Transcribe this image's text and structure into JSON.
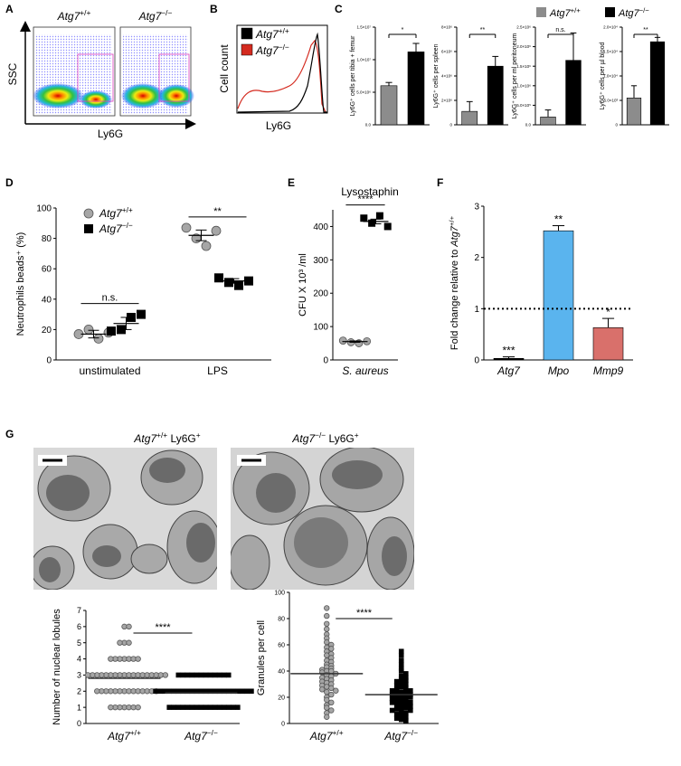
{
  "panels": {
    "A": {
      "letter": "A",
      "titles": [
        [
          {
            "text": "Atg7",
            "italic": true
          },
          {
            "text": "+/+",
            "sup": true
          }
        ],
        [
          {
            "text": "Atg7",
            "italic": true
          },
          {
            "text": "−/−",
            "sup": true
          }
        ]
      ],
      "y_label": "SSC",
      "x_label": "Ly6G"
    },
    "B": {
      "letter": "B",
      "y_label": "Cell count",
      "x_label": "Ly6G",
      "legend": [
        [
          {
            "text": "Atg7",
            "italic": true
          },
          {
            "text": "+/+",
            "sup": true
          }
        ],
        [
          {
            "text": "Atg7",
            "italic": true
          },
          {
            "text": "−/−",
            "sup": true
          }
        ]
      ],
      "colors": [
        "#000000",
        "#d42a1f"
      ]
    },
    "C": {
      "letter": "C",
      "legend": [
        [
          {
            "text": "Atg7",
            "italic": true
          },
          {
            "text": "+/+",
            "sup": true
          }
        ],
        [
          {
            "text": "Atg7",
            "italic": true
          },
          {
            "text": "−/−",
            "sup": true
          }
        ]
      ],
      "colors": [
        "#8c8c8c",
        "#000000"
      ]
    },
    "D": {
      "letter": "D"
    },
    "E": {
      "letter": "E"
    },
    "F": {
      "letter": "F"
    },
    "G": {
      "letter": "G",
      "titles": [
        [
          {
            "text": "Atg7",
            "italic": true
          },
          {
            "text": "+/+",
            "sup": true
          },
          {
            "text": " Ly6G"
          },
          {
            "text": "+",
            "sup": true
          }
        ],
        [
          {
            "text": "Atg7",
            "italic": true
          },
          {
            "text": "−/−",
            "sup": true
          },
          {
            "text": " Ly6G"
          },
          {
            "text": "+",
            "sup": true
          }
        ]
      ]
    }
  },
  "chart_data": [
    {
      "type": "bar",
      "y_label": "Ly6G⁺ cells per tibia + femur",
      "values": [
        6000000,
        11200000
      ],
      "errors": [
        500000,
        1300000
      ],
      "colors": [
        "#8c8c8c",
        "#000000"
      ],
      "ylim": [
        0,
        15000000
      ],
      "yticks": [
        {
          "value": 0,
          "label": "0.0"
        },
        {
          "value": 5000000,
          "label": "5.0×10⁶"
        },
        {
          "value": 10000000,
          "label": "1.0×10⁷"
        },
        {
          "value": 15000000,
          "label": "1.5×10⁷"
        }
      ],
      "annotations": [
        {
          "text": "*"
        }
      ]
    },
    {
      "type": "bar",
      "y_label": "Ly6G⁺ cells per spleen",
      "values": [
        1100000,
        4800000
      ],
      "errors": [
        800000,
        800000
      ],
      "colors": [
        "#8c8c8c",
        "#000000"
      ],
      "ylim": [
        0,
        8000000
      ],
      "yticks": [
        0,
        {
          "value": 2000000,
          "label": "2×10⁶"
        },
        {
          "value": 4000000,
          "label": "4×10⁶"
        },
        {
          "value": 6000000,
          "label": "6×10⁶"
        },
        {
          "value": 8000000,
          "label": "8×10⁶"
        }
      ],
      "annotations": [
        {
          "text": "**"
        }
      ]
    },
    {
      "type": "bar",
      "y_label": "Ly6G⁺ cells per ml peritoneum",
      "values": [
        200000,
        1650000
      ],
      "errors": [
        180000,
        700000
      ],
      "colors": [
        "#8c8c8c",
        "#000000"
      ],
      "ylim": [
        0,
        2500000
      ],
      "yticks": [
        {
          "value": 0,
          "label": "0.0"
        },
        {
          "value": 500000,
          "label": "5.0×10⁵"
        },
        {
          "value": 1000000,
          "label": "1.0×10⁶"
        },
        {
          "value": 1500000,
          "label": "1.5×10⁶"
        },
        {
          "value": 2000000,
          "label": "2.0×10⁶"
        },
        {
          "value": 2500000,
          "label": "2.5×10⁶"
        }
      ],
      "annotations": [
        {
          "text": "n.s."
        }
      ]
    },
    {
      "type": "bar",
      "y_label": "Ly6G⁺ cells per µl blood",
      "values": [
        5500,
        17000
      ],
      "errors": [
        2500,
        900
      ],
      "colors": [
        "#8c8c8c",
        "#000000"
      ],
      "ylim": [
        0,
        20000
      ],
      "yticks": [
        0,
        {
          "value": 5000,
          "label": "5.0×10³"
        },
        {
          "value": 10000,
          "label": "1.0×10⁴"
        },
        {
          "value": 15000,
          "label": "1.5×10⁴"
        },
        {
          "value": 20000,
          "label": "2.0×10⁴"
        }
      ],
      "annotations": [
        {
          "text": "**"
        }
      ]
    },
    {
      "type": "dot",
      "y_label": "Neutrophils beads⁺ (%)",
      "categories": [
        "unstimulated",
        "LPS"
      ],
      "ylim": [
        0,
        100
      ],
      "yticks": [
        0,
        20,
        40,
        60,
        80,
        100
      ],
      "series": [
        {
          "name": [
            {
              "text": "Atg7",
              "italic": true
            },
            {
              "text": "+/+",
              "sup": true
            }
          ],
          "color": "#a6a6a6",
          "marker": "circle",
          "values": [
            [
              17,
              20,
              14,
              18
            ],
            [
              87,
              80,
              75,
              85
            ]
          ],
          "means": [
            17,
            82
          ],
          "errors": [
            2.5,
            3.5
          ]
        },
        {
          "name": [
            {
              "text": "Atg7",
              "italic": true
            },
            {
              "text": "−/−",
              "sup": true
            }
          ],
          "color": "#000000",
          "marker": "square",
          "values": [
            [
              19,
              20,
              28,
              30
            ],
            [
              54,
              51,
              49,
              52
            ]
          ],
          "means": [
            24,
            52
          ],
          "errors": [
            4,
            1.5
          ]
        }
      ],
      "legend": true,
      "annotations": [
        {
          "text": "n.s.",
          "category": 0
        },
        {
          "text": "**",
          "category": 1
        }
      ]
    },
    {
      "type": "dot",
      "title": "Lysostaphin",
      "y_label": "CFU X 10³ /ml",
      "categories": [
        [
          {
            "text": "S. aureus",
            "italic": true
          }
        ]
      ],
      "ylim": [
        0,
        450
      ],
      "yticks": [
        0,
        100,
        200,
        300,
        400
      ],
      "series": [
        {
          "color": "#a6a6a6",
          "marker": "circle",
          "values": [
            [
              58,
              53,
              50,
              56
            ]
          ],
          "means": [
            55
          ],
          "errors": [
            2
          ]
        },
        {
          "color": "#000000",
          "marker": "square",
          "values": [
            [
              425,
              410,
              432,
              400
            ]
          ],
          "means": [
            415
          ],
          "errors": [
            7
          ]
        }
      ],
      "annotations": [
        {
          "text": "****",
          "category": 0
        }
      ]
    },
    {
      "type": "bar",
      "y_label": [
        {
          "text": "Fold change relative to "
        },
        {
          "text": "Atg7",
          "italic": true
        },
        {
          "text": "+/+",
          "sup": true
        }
      ],
      "categories": [
        [
          {
            "text": "Atg7",
            "italic": true
          }
        ],
        [
          {
            "text": "Mpo",
            "italic": true
          }
        ],
        [
          {
            "text": "Mmp9",
            "italic": true
          }
        ]
      ],
      "values": [
        0.03,
        2.52,
        0.63
      ],
      "errors": [
        0.03,
        0.1,
        0.18
      ],
      "colors": [
        "#000000",
        "#5ab4ee",
        "#d9706b"
      ],
      "bar_labels": [
        "***",
        "**",
        "*"
      ],
      "reference_line": 1,
      "ylim": [
        0,
        3
      ],
      "yticks": [
        0,
        1,
        2,
        3
      ]
    },
    {
      "type": "dot",
      "y_label": "Number of nuclear lobules",
      "ylim": [
        0,
        7
      ],
      "yticks": [
        0,
        1,
        2,
        3,
        4,
        5,
        6,
        7
      ],
      "series": [
        {
          "name": [
            {
              "text": "Atg7",
              "italic": true
            },
            {
              "text": "+/+",
              "sup": true
            }
          ],
          "color": "#a6a6a6",
          "marker": "circle",
          "values": [
            6,
            6,
            5,
            5,
            5,
            4,
            4,
            4,
            4,
            4,
            4,
            4,
            3,
            3,
            3,
            3,
            3,
            3,
            3,
            3,
            3,
            3,
            3,
            3,
            3,
            3,
            3,
            3,
            3,
            3,
            2,
            2,
            2,
            2,
            2,
            2,
            2,
            2,
            2,
            2,
            2,
            2,
            2,
            2,
            1,
            1,
            1,
            1,
            1,
            1,
            1
          ],
          "mean": 2.8
        },
        {
          "name": [
            {
              "text": "Atg7",
              "italic": true
            },
            {
              "text": "−/−",
              "sup": true
            }
          ],
          "color": "#000000",
          "marker": "square",
          "values": [
            3,
            3,
            3,
            3,
            3,
            3,
            3,
            3,
            3,
            3,
            3,
            3,
            2,
            2,
            2,
            2,
            2,
            2,
            2,
            2,
            2,
            2,
            2,
            2,
            2,
            2,
            2,
            2,
            2,
            2,
            2,
            2,
            2,
            2,
            1,
            1,
            1,
            1,
            1,
            1,
            1,
            1,
            1,
            1,
            1,
            1,
            1,
            1,
            1,
            1
          ],
          "mean": 1.9
        }
      ],
      "annotations": [
        {
          "text": "****"
        }
      ]
    },
    {
      "type": "dot",
      "y_label": "Granules per cell",
      "ylim": [
        0,
        100
      ],
      "yticks": [
        0,
        20,
        40,
        60,
        80,
        100
      ],
      "series": [
        {
          "name": [
            {
              "text": "Atg7",
              "italic": true
            },
            {
              "text": "+/+",
              "sup": true
            }
          ],
          "color": "#a6a6a6",
          "marker": "circle",
          "values": [
            88,
            82,
            76,
            72,
            68,
            65,
            62,
            60,
            58,
            57,
            55,
            53,
            52,
            50,
            48,
            47,
            45,
            44,
            43,
            42,
            41,
            40,
            40,
            39,
            38,
            37,
            36,
            35,
            34,
            33,
            32,
            31,
            30,
            29,
            28,
            27,
            26,
            25,
            24,
            22,
            20,
            18,
            16,
            14,
            12,
            10,
            8,
            5
          ],
          "mean": 38
        },
        {
          "name": [
            {
              "text": "Atg7",
              "italic": true
            },
            {
              "text": "−/−",
              "sup": true
            }
          ],
          "color": "#000000",
          "marker": "square",
          "values": [
            55,
            52,
            48,
            45,
            42,
            40,
            38,
            36,
            35,
            34,
            33,
            32,
            31,
            30,
            29,
            28,
            27,
            26,
            25,
            25,
            24,
            24,
            23,
            22,
            22,
            21,
            21,
            20,
            20,
            19,
            18,
            18,
            17,
            16,
            16,
            15,
            15,
            14,
            13,
            12,
            12,
            11,
            10,
            10,
            9,
            8,
            7,
            6,
            5,
            4,
            3,
            2
          ],
          "mean": 22
        }
      ],
      "annotations": [
        {
          "text": "****"
        }
      ]
    }
  ]
}
